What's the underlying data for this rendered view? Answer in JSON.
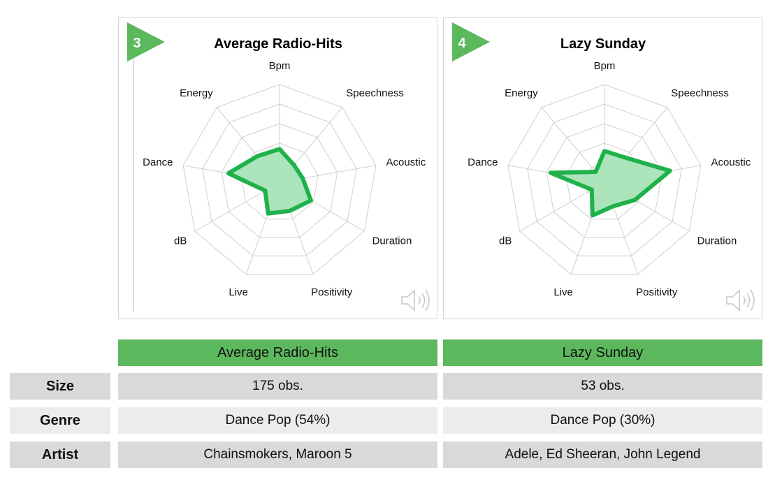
{
  "colors": {
    "accent_green": "#5cb85c",
    "series_stroke": "#1fb24a",
    "series_fill": "#a8e3b8",
    "row_dark": "#d9d9d9",
    "row_light": "#ececec"
  },
  "chart_data": [
    {
      "type": "radar",
      "badge": "3",
      "title": "Average Radio-Hits",
      "axes": [
        "Bpm",
        "Speechness",
        "Acoustic",
        "Duration",
        "Positivity",
        "Live",
        "dB",
        "Dance",
        "Energy"
      ],
      "rings": 5,
      "max": 1.0,
      "values": [
        0.34,
        0.23,
        0.24,
        0.37,
        0.31,
        0.34,
        0.17,
        0.53,
        0.35
      ],
      "grid": true
    },
    {
      "type": "radar",
      "badge": "4",
      "title": "Lazy Sunday",
      "axes": [
        "Bpm",
        "Speechness",
        "Acoustic",
        "Duration",
        "Positivity",
        "Live",
        "dB",
        "Dance",
        "Energy"
      ],
      "rings": 5,
      "max": 1.0,
      "values": [
        0.32,
        0.33,
        0.68,
        0.36,
        0.26,
        0.36,
        0.15,
        0.56,
        0.14
      ],
      "grid": true
    }
  ],
  "table": {
    "columns": [
      "Average Radio-Hits",
      "Lazy Sunday"
    ],
    "rows": [
      {
        "label": "Size",
        "values": [
          "175 obs.",
          "53 obs."
        ]
      },
      {
        "label": "Genre",
        "values": [
          "Dance Pop (54%)",
          "Dance Pop (30%)"
        ]
      },
      {
        "label": "Artist",
        "values": [
          "Chainsmokers, Maroon 5",
          "Adele, Ed Sheeran, John Legend"
        ]
      }
    ]
  },
  "icons": {
    "sound": "speaker-icon"
  }
}
